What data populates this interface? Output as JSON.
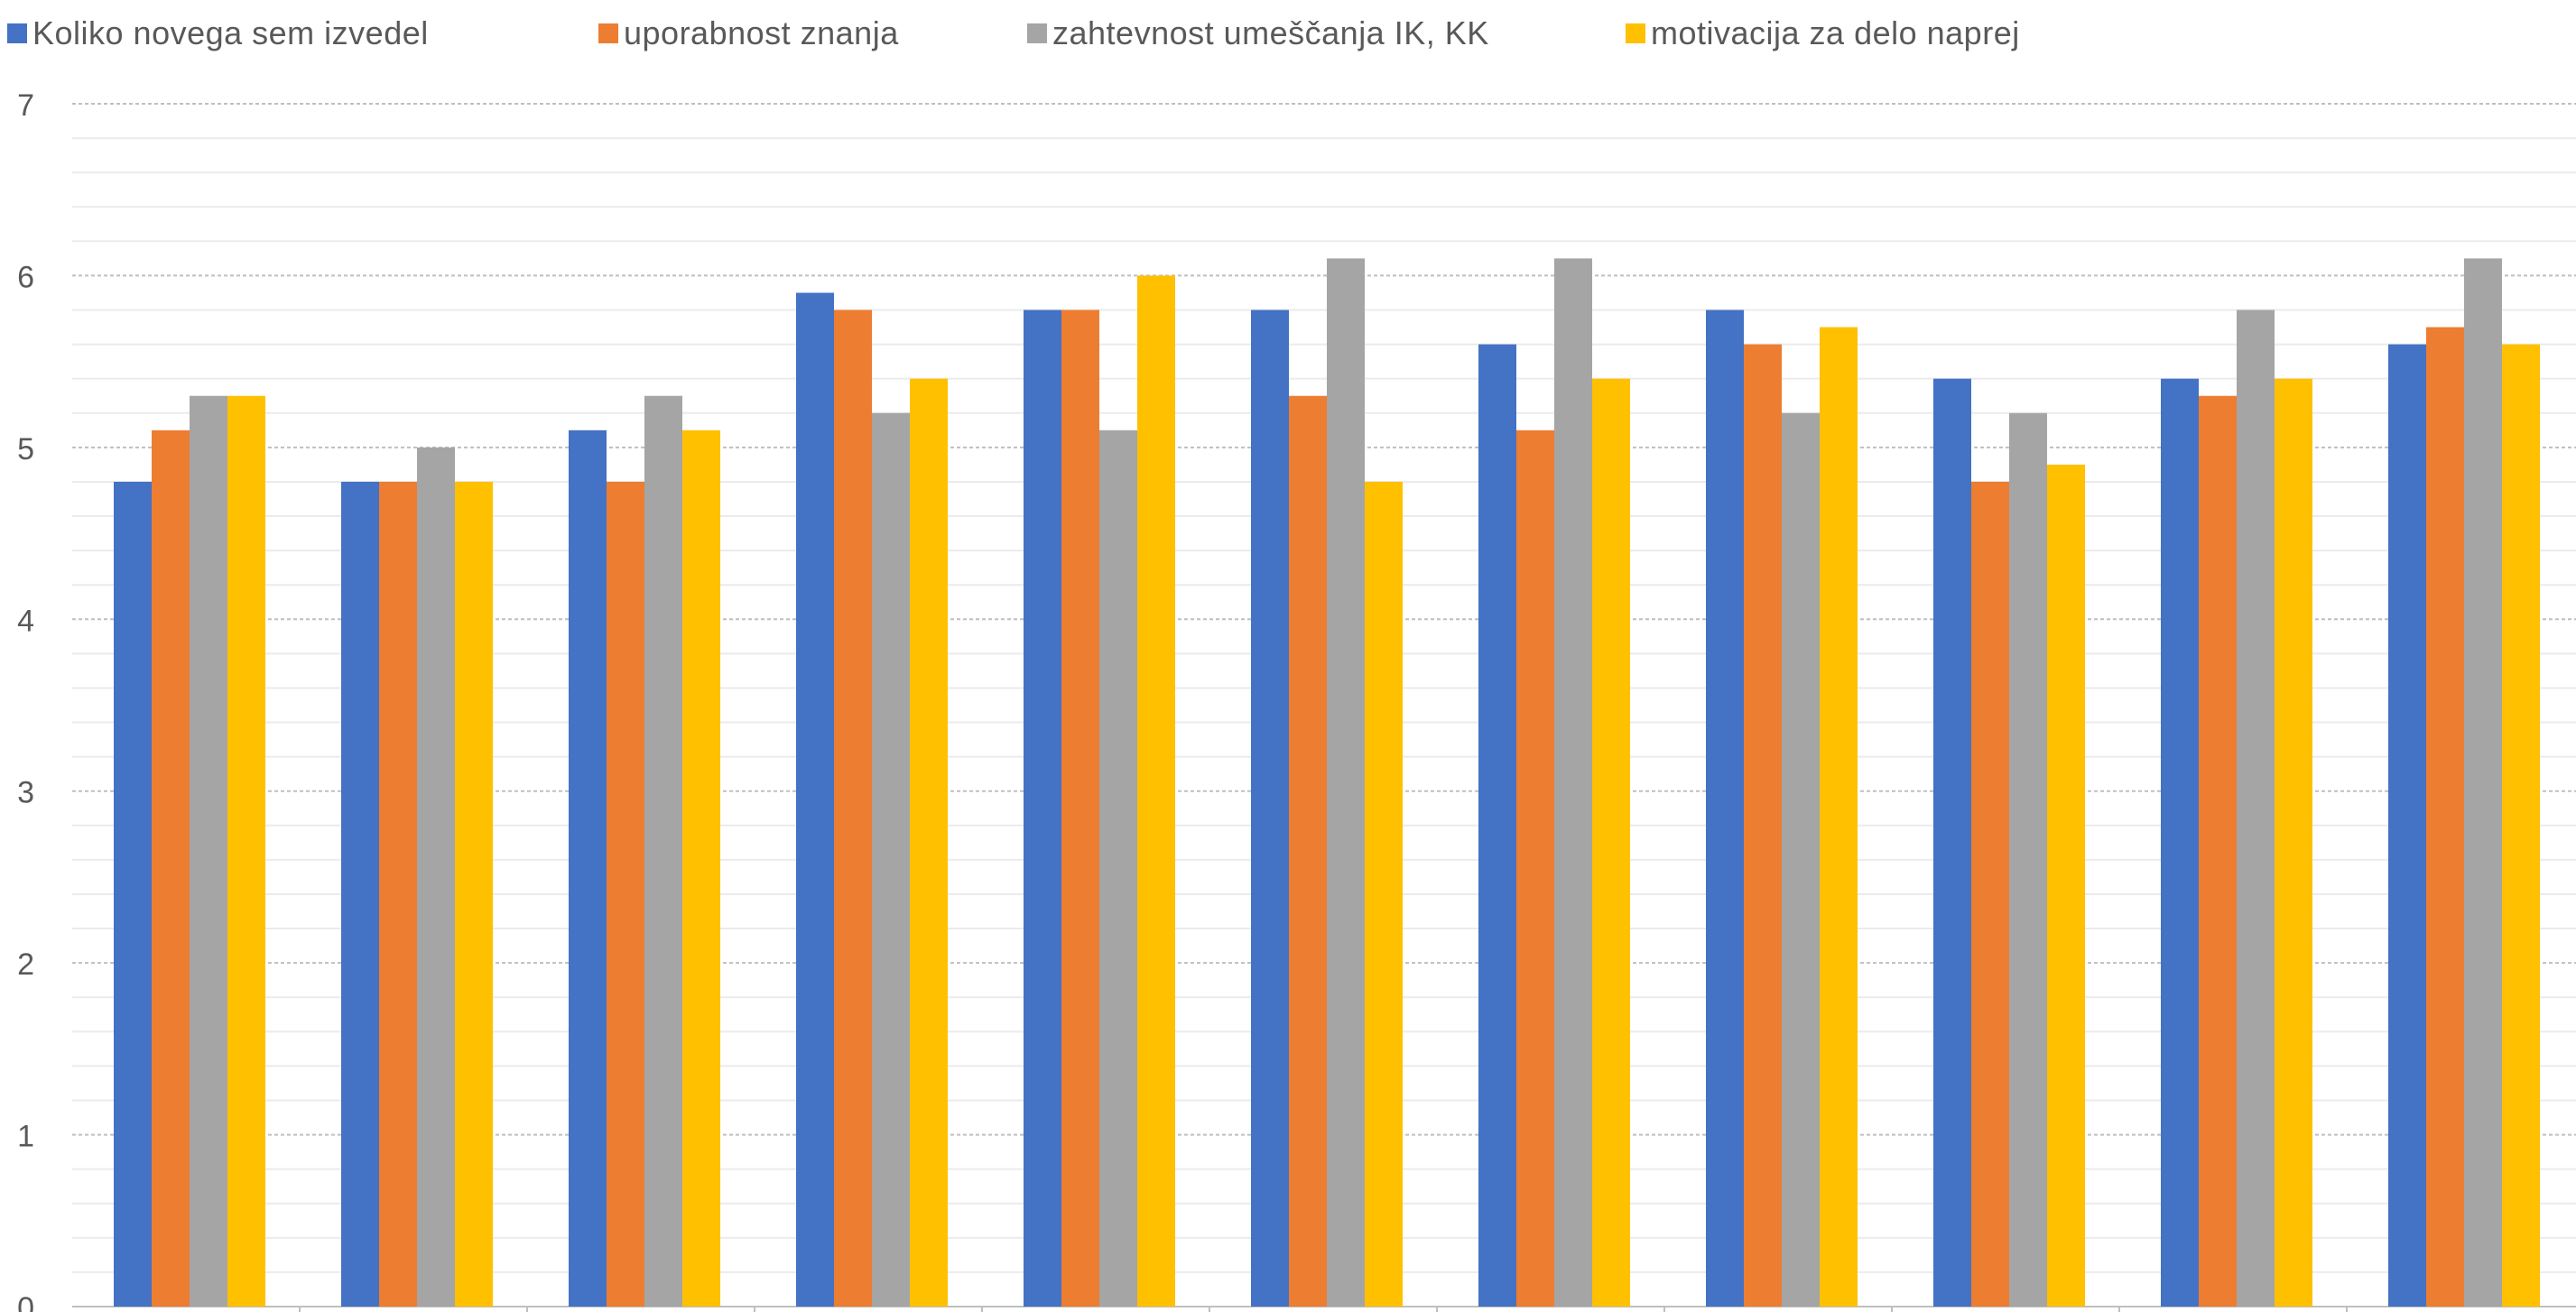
{
  "chart_data": {
    "type": "bar",
    "categories": [
      "",
      "",
      "",
      "",
      "",
      "",
      "",
      "",
      "",
      "",
      ""
    ],
    "series": [
      {
        "name": "Koliko novega sem  izvedel",
        "color": "#4472C4",
        "values": [
          4.8,
          4.8,
          5.1,
          5.9,
          5.8,
          5.8,
          5.6,
          5.8,
          5.4,
          5.4,
          5.6
        ]
      },
      {
        "name": "uporabnost znanja",
        "color": "#ED7D31",
        "values": [
          5.1,
          4.8,
          4.8,
          5.8,
          5.8,
          5.3,
          5.1,
          5.6,
          4.8,
          5.3,
          5.7
        ]
      },
      {
        "name": "zahtevnost umeščanja IK, KK",
        "color": "#A5A5A5",
        "values": [
          5.3,
          5.0,
          5.3,
          5.2,
          5.1,
          6.1,
          6.1,
          5.2,
          5.2,
          5.8,
          6.1
        ]
      },
      {
        "name": "motivacija za delo naprej",
        "color": "#FFC000",
        "values": [
          5.3,
          4.8,
          5.1,
          5.4,
          6.0,
          4.8,
          5.4,
          5.7,
          4.9,
          5.4,
          5.6
        ]
      }
    ],
    "yticks": [
      "0",
      "1",
      "2",
      "3",
      "4",
      "5",
      "6",
      "7"
    ],
    "ylim": [
      0,
      7
    ],
    "grid": true,
    "minor_grid_step": 0.2,
    "legend_position": "top-left"
  }
}
